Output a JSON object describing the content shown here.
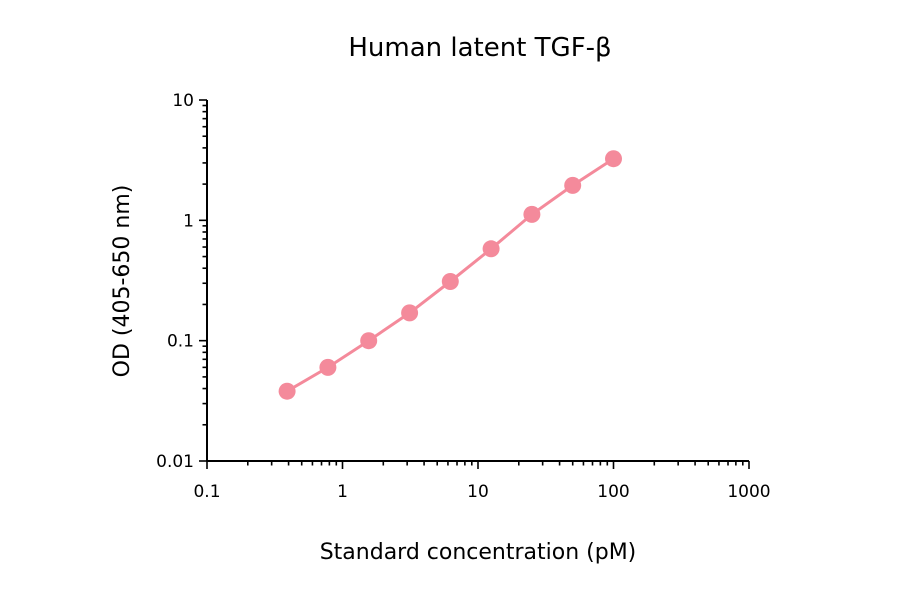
{
  "chart_data": {
    "type": "line",
    "title": "Human latent TGF-β",
    "xlabel": "Standard concentration (pM)",
    "ylabel": "OD (405-650 nm)",
    "x_scale": "log",
    "y_scale": "log",
    "xlim": [
      0.1,
      1000
    ],
    "ylim": [
      0.01,
      10
    ],
    "x_tick_labels": [
      "0.1",
      "1",
      "10",
      "100",
      "1000"
    ],
    "y_tick_labels": [
      "0.01",
      "0.1",
      "1",
      "10"
    ],
    "grid": false,
    "legend": "none",
    "series": [
      {
        "color": "#f48a9b",
        "x": [
          0.39,
          0.78,
          1.56,
          3.13,
          6.25,
          12.5,
          25,
          50,
          100
        ],
        "y": [
          0.038,
          0.06,
          0.1,
          0.17,
          0.31,
          0.58,
          1.12,
          1.95,
          3.25
        ]
      }
    ]
  }
}
